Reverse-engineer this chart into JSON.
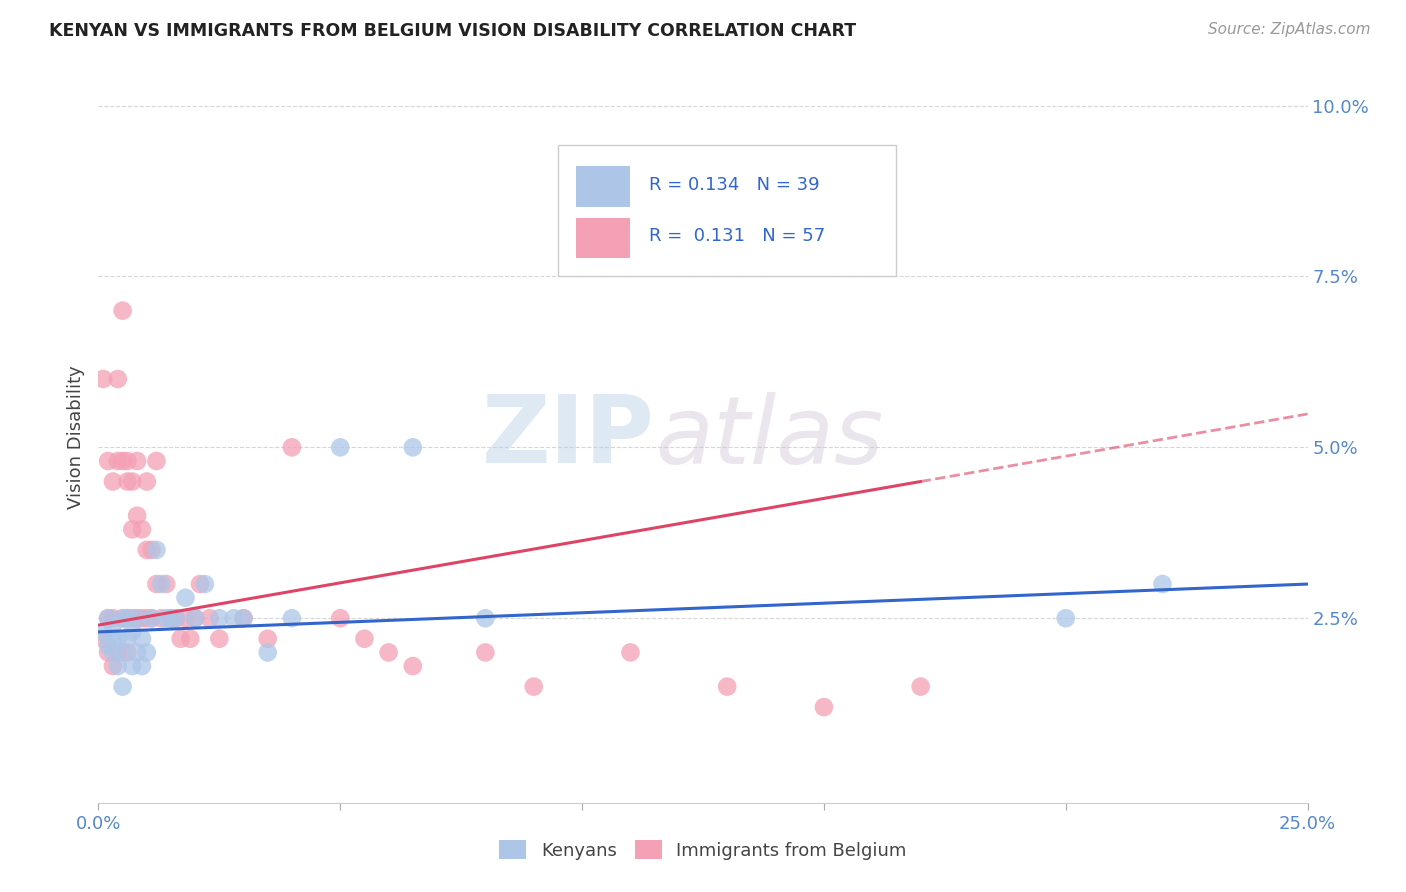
{
  "title": "KENYAN VS IMMIGRANTS FROM BELGIUM VISION DISABILITY CORRELATION CHART",
  "source": "Source: ZipAtlas.com",
  "ylabel": "Vision Disability",
  "xlim": [
    0.0,
    0.25
  ],
  "ylim": [
    -0.002,
    0.105
  ],
  "xtick_positions": [
    0.0,
    0.05,
    0.1,
    0.15,
    0.2,
    0.25
  ],
  "xtick_labels": [
    "0.0%",
    "",
    "",
    "",
    "",
    "25.0%"
  ],
  "ytick_positions": [
    0.025,
    0.05,
    0.075,
    0.1
  ],
  "ytick_labels": [
    "2.5%",
    "5.0%",
    "7.5%",
    "10.0%"
  ],
  "legend_r_blue": "0.134",
  "legend_n_blue": "39",
  "legend_r_pink": "0.131",
  "legend_n_pink": "57",
  "legend_label_blue": "Kenyans",
  "legend_label_pink": "Immigrants from Belgium",
  "blue_color": "#adc6e8",
  "pink_color": "#f4a0b5",
  "blue_line_color": "#3366cc",
  "pink_line_color": "#dd4466",
  "watermark_zip": "ZIP",
  "watermark_atlas": "atlas",
  "blue_scatter_x": [
    0.001,
    0.002,
    0.002,
    0.003,
    0.003,
    0.003,
    0.004,
    0.004,
    0.005,
    0.005,
    0.005,
    0.006,
    0.006,
    0.007,
    0.007,
    0.008,
    0.008,
    0.009,
    0.009,
    0.01,
    0.011,
    0.012,
    0.013,
    0.014,
    0.015,
    0.016,
    0.018,
    0.02,
    0.022,
    0.025,
    0.028,
    0.03,
    0.035,
    0.04,
    0.05,
    0.065,
    0.08,
    0.2,
    0.22
  ],
  "blue_scatter_y": [
    0.023,
    0.021,
    0.025,
    0.02,
    0.022,
    0.024,
    0.018,
    0.022,
    0.015,
    0.02,
    0.025,
    0.022,
    0.025,
    0.018,
    0.023,
    0.02,
    0.025,
    0.018,
    0.022,
    0.02,
    0.025,
    0.035,
    0.03,
    0.025,
    0.025,
    0.025,
    0.028,
    0.025,
    0.03,
    0.025,
    0.025,
    0.025,
    0.02,
    0.025,
    0.05,
    0.05,
    0.025,
    0.025,
    0.03
  ],
  "pink_scatter_x": [
    0.001,
    0.001,
    0.002,
    0.002,
    0.002,
    0.003,
    0.003,
    0.003,
    0.004,
    0.004,
    0.004,
    0.005,
    0.005,
    0.005,
    0.006,
    0.006,
    0.006,
    0.006,
    0.007,
    0.007,
    0.007,
    0.008,
    0.008,
    0.008,
    0.009,
    0.009,
    0.01,
    0.01,
    0.01,
    0.011,
    0.011,
    0.012,
    0.012,
    0.013,
    0.014,
    0.015,
    0.016,
    0.017,
    0.018,
    0.019,
    0.02,
    0.021,
    0.023,
    0.025,
    0.03,
    0.035,
    0.04,
    0.05,
    0.055,
    0.06,
    0.065,
    0.08,
    0.09,
    0.11,
    0.13,
    0.15,
    0.17
  ],
  "pink_scatter_y": [
    0.022,
    0.06,
    0.02,
    0.025,
    0.048,
    0.018,
    0.045,
    0.025,
    0.048,
    0.02,
    0.06,
    0.048,
    0.025,
    0.07,
    0.045,
    0.025,
    0.048,
    0.02,
    0.038,
    0.045,
    0.025,
    0.04,
    0.048,
    0.025,
    0.038,
    0.025,
    0.035,
    0.045,
    0.025,
    0.035,
    0.025,
    0.03,
    0.048,
    0.025,
    0.03,
    0.025,
    0.025,
    0.022,
    0.025,
    0.022,
    0.025,
    0.03,
    0.025,
    0.022,
    0.025,
    0.022,
    0.05,
    0.025,
    0.022,
    0.02,
    0.018,
    0.02,
    0.015,
    0.02,
    0.015,
    0.012,
    0.015
  ],
  "blue_line_x": [
    0.0,
    0.25
  ],
  "blue_line_y": [
    0.023,
    0.03
  ],
  "pink_line_x": [
    0.0,
    0.17
  ],
  "pink_line_y": [
    0.024,
    0.045
  ]
}
